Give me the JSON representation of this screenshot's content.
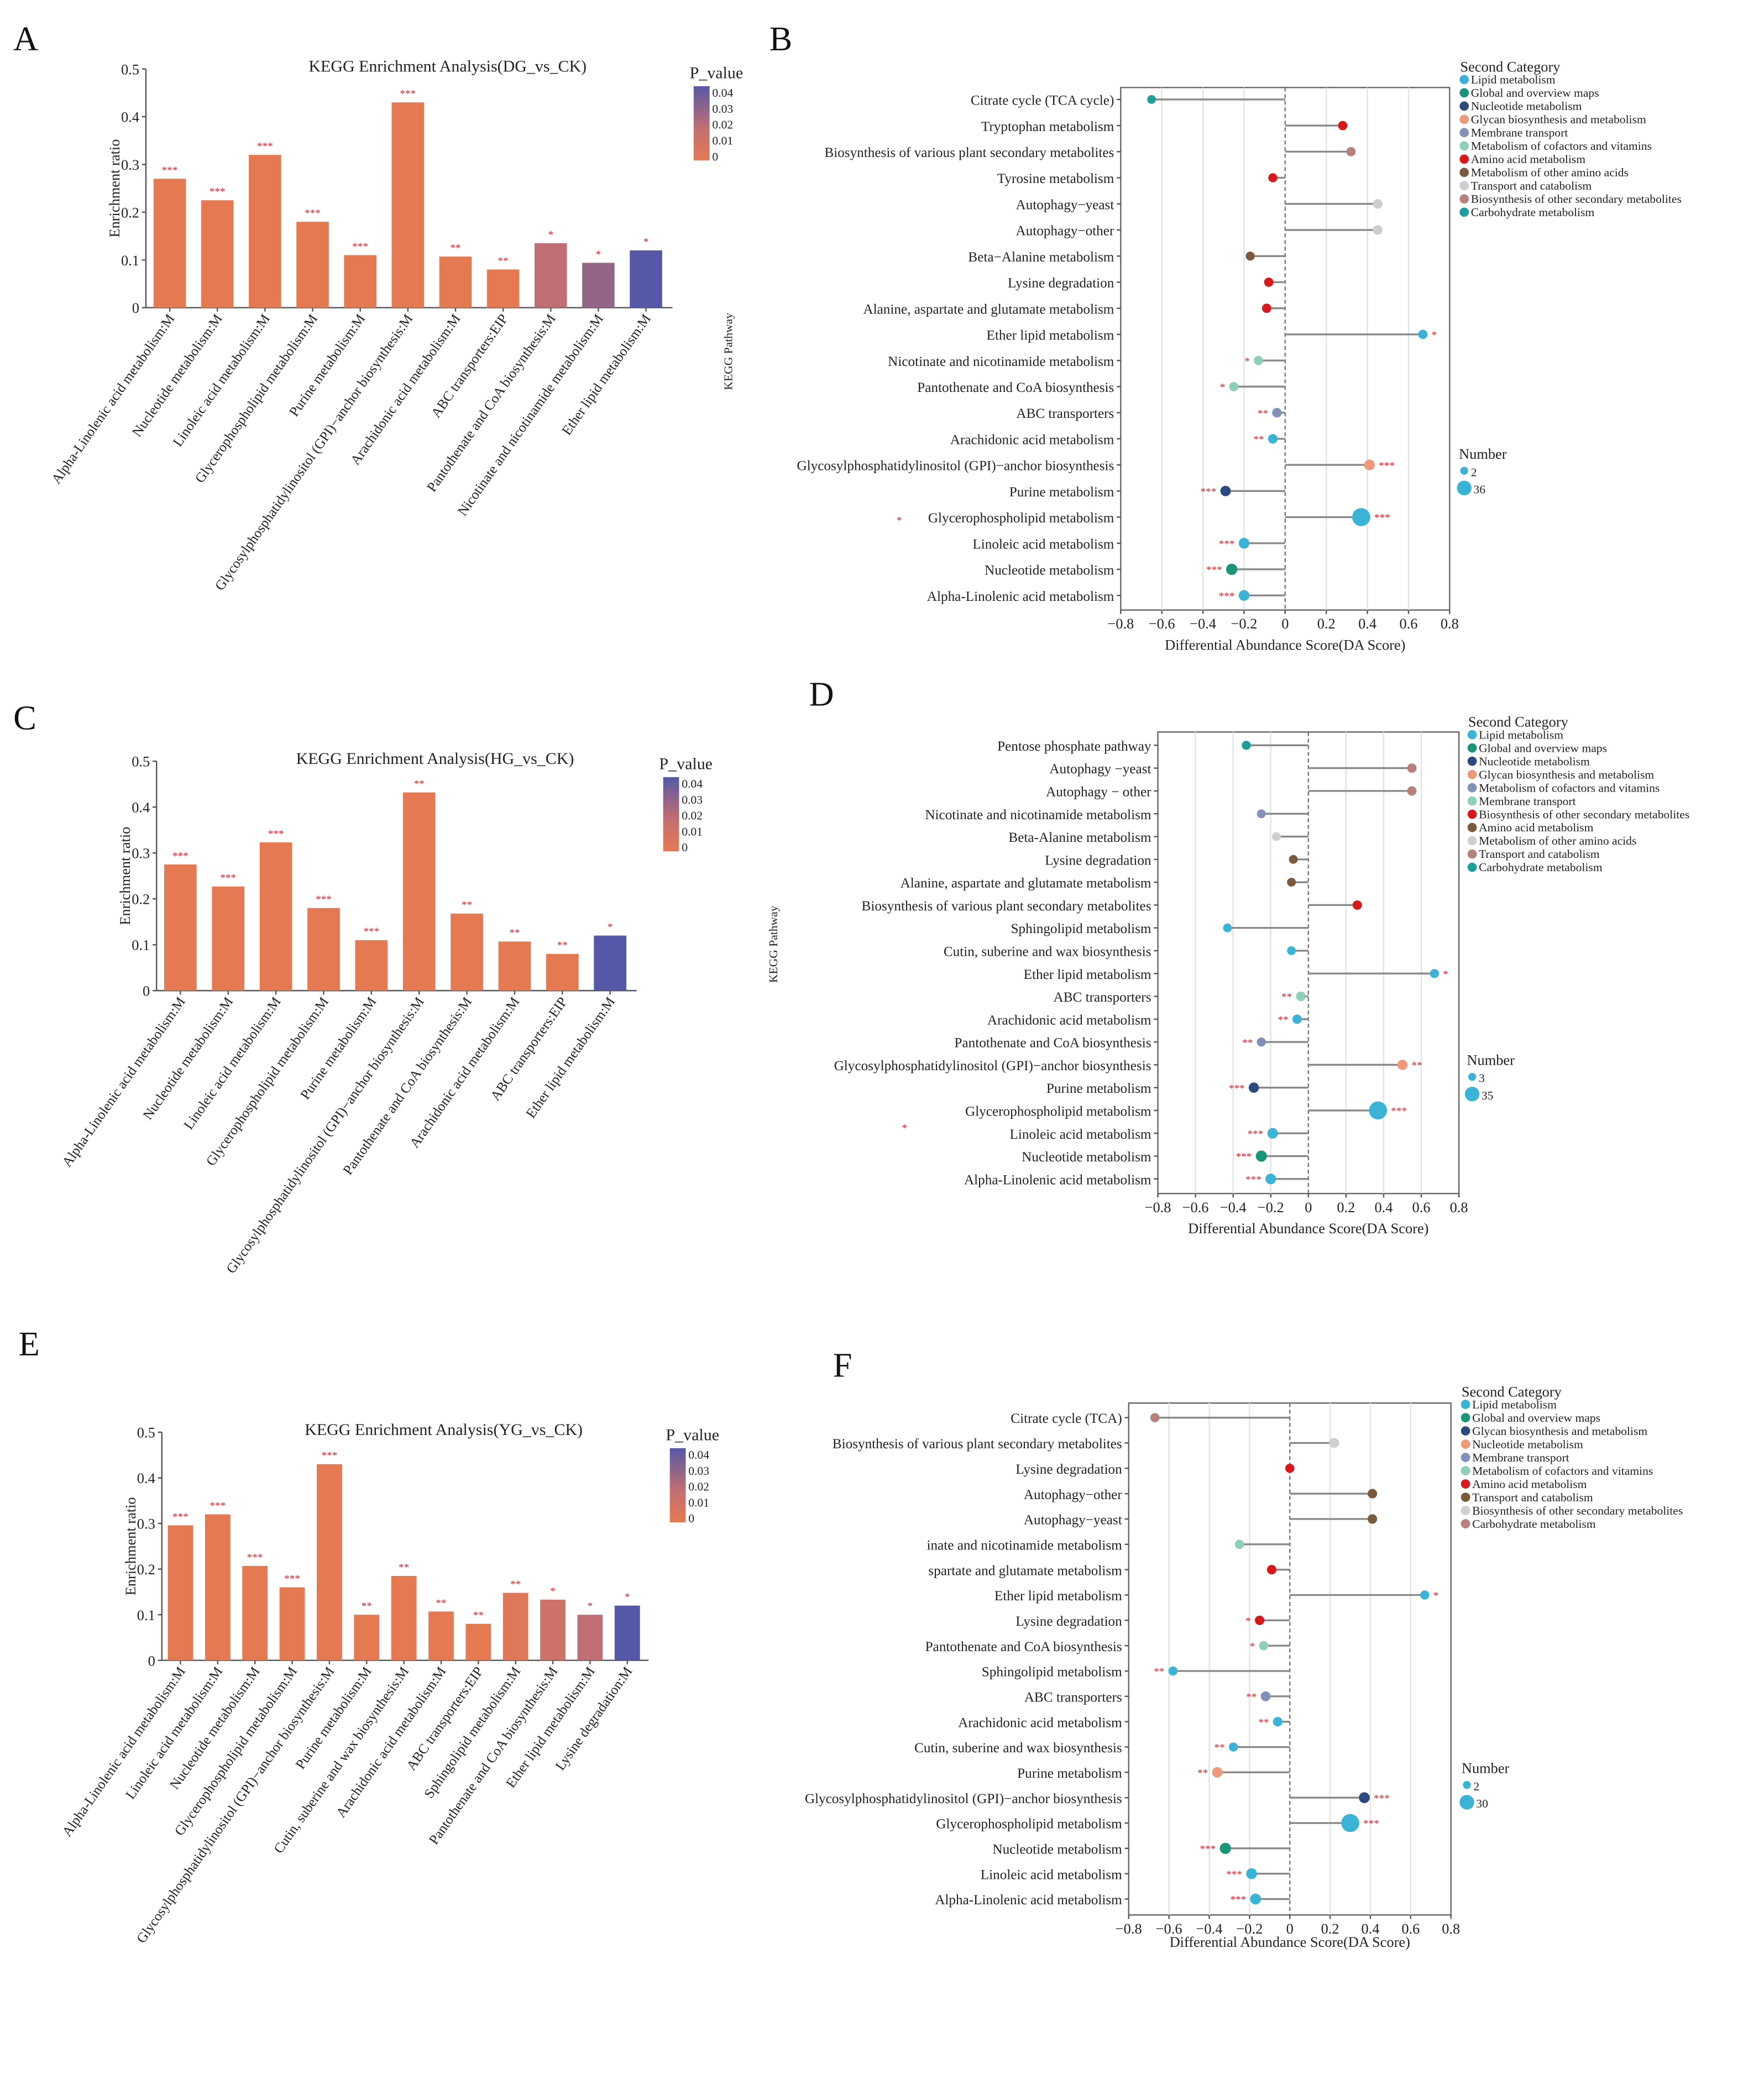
{
  "chart_data": [
    {
      "panel": "A",
      "type": "bar",
      "title": "KEGG Enrichment Analysis(DG_vs_CK)",
      "ylabel": "Enrichment ratio",
      "ylim": [
        0,
        0.5
      ],
      "yticks": [
        "0",
        "0.1",
        "0.2",
        "0.3",
        "0.4",
        "0.5"
      ],
      "legend_title": "P_value",
      "legend_ticks": [
        "0.04",
        "0.03",
        "0.02",
        "0.01",
        "0"
      ],
      "colors": {
        "low": "#E57A52",
        "mid": "#C06E73",
        "high": "#5558A6"
      },
      "categories": [
        "Alpha-Linolenic acid metabolism:M",
        "Nucleotide metabolism:M",
        "Linoleic acid metabolism:M",
        "Glycerophospholipid metabolism:M",
        "Purine metabolism:M",
        "Glycosylphosphatidylinositol (GPI)−anchor biosynthesis:M",
        "Arachidonic acid metabolism:M",
        "ABC transporters:EIP",
        "Pantothenate and CoA biosynthesis:M",
        "Nicotinate and nicotinamide metabolism:M",
        "Ether lipid metabolism:M"
      ],
      "values": [
        0.27,
        0.225,
        0.32,
        0.18,
        0.11,
        0.43,
        0.107,
        0.08,
        0.135,
        0.094,
        0.12
      ],
      "p_values": [
        0.001,
        0.001,
        0.001,
        0.001,
        0.001,
        0.001,
        0.004,
        0.004,
        0.02,
        0.03,
        0.045
      ],
      "significance": [
        "***",
        "***",
        "***",
        "***",
        "***",
        "***",
        "**",
        "**",
        "*",
        "*",
        "*"
      ]
    },
    {
      "panel": "B",
      "type": "lollipop",
      "xlabel": "Differential Abundance Score(DA Score)",
      "ylabel": "KEGG Pathway",
      "xlim": [
        -0.8,
        0.8
      ],
      "xticks": [
        "−0.8",
        "−0.6",
        "−0.4",
        "−0.2",
        "0",
        "0.2",
        "0.4",
        "0.6",
        "0.8"
      ],
      "legend_title": "Second Category",
      "legend": [
        {
          "label": "Lipid metabolism",
          "color": "#3BB3D6"
        },
        {
          "label": "Global and overview maps",
          "color": "#1A9577"
        },
        {
          "label": "Nucleotide metabolism",
          "color": "#2C4A7E"
        },
        {
          "label": "Glycan biosynthesis and metabolism",
          "color": "#EE9A7A"
        },
        {
          "label": "Membrane transport",
          "color": "#8291B8"
        },
        {
          "label": "Metabolism of cofactors and vitamins",
          "color": "#8ECFB8"
        },
        {
          "label": "Amino acid metabolism",
          "color": "#D7191C"
        },
        {
          "label": "Metabolism of other amino acids",
          "color": "#7A5A3C"
        },
        {
          "label": "Transport and catabolism",
          "color": "#CFCFCF"
        },
        {
          "label": "Biosynthesis of other secondary metabolites",
          "color": "#B8807D"
        },
        {
          "label": "Carbohydrate metabolism",
          "color": "#1F9E9E"
        }
      ],
      "size_title": "Number",
      "size_labels": [
        "2",
        "36"
      ],
      "size_range": [
        2,
        36
      ],
      "stray_mark": "*",
      "rows": [
        {
          "label": "Citrate cycle (TCA cycle)",
          "value": -0.65,
          "cat": 10,
          "number": 3,
          "sig": ""
        },
        {
          "label": "Tryptophan metabolism",
          "value": 0.28,
          "cat": 6,
          "number": 5,
          "sig": ""
        },
        {
          "label": "Biosynthesis of various plant secondary metabolites",
          "value": 0.32,
          "cat": 9,
          "number": 5,
          "sig": ""
        },
        {
          "label": "Tyrosine metabolism",
          "value": -0.06,
          "cat": 6,
          "number": 4,
          "sig": ""
        },
        {
          "label": "Autophagy−yeast",
          "value": 0.45,
          "cat": 8,
          "number": 6,
          "sig": ""
        },
        {
          "label": "Autophagy−other",
          "value": 0.45,
          "cat": 8,
          "number": 6,
          "sig": ""
        },
        {
          "label": "Beta−Alanine metabolism",
          "value": -0.17,
          "cat": 7,
          "number": 4,
          "sig": ""
        },
        {
          "label": "Lysine degradation",
          "value": -0.08,
          "cat": 6,
          "number": 5,
          "sig": ""
        },
        {
          "label": "Alanine, aspartate and glutamate metabolism",
          "value": -0.09,
          "cat": 6,
          "number": 5,
          "sig": ""
        },
        {
          "label": "Ether lipid metabolism",
          "value": 0.67,
          "cat": 0,
          "number": 5,
          "sig": "*"
        },
        {
          "label": "Nicotinate and nicotinamide metabolism",
          "value": -0.13,
          "cat": 5,
          "number": 5,
          "sig": "*"
        },
        {
          "label": "Pantothenate and CoA biosynthesis",
          "value": -0.25,
          "cat": 5,
          "number": 5,
          "sig": "*"
        },
        {
          "label": "ABC transporters",
          "value": -0.04,
          "cat": 4,
          "number": 6,
          "sig": "**"
        },
        {
          "label": "Arachidonic acid metabolism",
          "value": -0.06,
          "cat": 0,
          "number": 6,
          "sig": "**"
        },
        {
          "label": "Glycosylphosphatidylinositol (GPI)−anchor biosynthesis",
          "value": 0.41,
          "cat": 3,
          "number": 10,
          "sig": "***"
        },
        {
          "label": "Purine metabolism",
          "value": -0.29,
          "cat": 2,
          "number": 9,
          "sig": "***"
        },
        {
          "label": "Glycerophospholipid metabolism",
          "value": 0.37,
          "cat": 0,
          "number": 36,
          "sig": "***"
        },
        {
          "label": "Linoleic acid metabolism",
          "value": -0.2,
          "cat": 0,
          "number": 10,
          "sig": "***"
        },
        {
          "label": "Nucleotide metabolism",
          "value": -0.26,
          "cat": 1,
          "number": 12,
          "sig": "***"
        },
        {
          "label": "Alpha-Linolenic acid metabolism",
          "value": -0.2,
          "cat": 0,
          "number": 10,
          "sig": "***"
        }
      ]
    },
    {
      "panel": "C",
      "type": "bar",
      "title": "KEGG Enrichment Analysis(HG_vs_CK)",
      "ylabel": "Enrichment ratio",
      "ylim": [
        0,
        0.5
      ],
      "yticks": [
        "0",
        "0.1",
        "0.2",
        "0.3",
        "0.4",
        "0.5"
      ],
      "legend_title": "P_value",
      "legend_ticks": [
        "0.04",
        "0.03",
        "0.02",
        "0.01",
        "0"
      ],
      "colors": {
        "low": "#E57A52",
        "mid": "#C06E73",
        "high": "#5558A6"
      },
      "categories": [
        "Alpha-Linolenic acid metabolism:M",
        "Nucleotide metabolism:M",
        "Linoleic acid metabolism:M",
        "Glycerophospholipid metabolism:M",
        "Purine metabolism:M",
        "Glycosylphosphatidylinositol (GPI)−anchor biosynthesis:M",
        "Pantothenate and CoA biosynthesis:M",
        "Arachidonic acid metabolism:M",
        "ABC transporters:EIP",
        "Ether lipid metabolism:M"
      ],
      "values": [
        0.275,
        0.227,
        0.323,
        0.18,
        0.11,
        0.432,
        0.168,
        0.107,
        0.08,
        0.12
      ],
      "p_values": [
        0.001,
        0.001,
        0.001,
        0.001,
        0.001,
        0.003,
        0.004,
        0.004,
        0.005,
        0.045
      ],
      "significance": [
        "***",
        "***",
        "***",
        "***",
        "***",
        "**",
        "**",
        "**",
        "**",
        "*"
      ]
    },
    {
      "panel": "D",
      "type": "lollipop",
      "xlabel": "Differential Abundance Score(DA Score)",
      "ylabel": "KEGG Pathway",
      "xlim": [
        -0.8,
        0.8
      ],
      "xticks": [
        "−0.8",
        "−0.6",
        "−0.4",
        "−0.2",
        "0",
        "0.2",
        "0.4",
        "0.6",
        "0.8"
      ],
      "legend_title": "Second Category",
      "legend": [
        {
          "label": "Lipid metabolism",
          "color": "#3BB3D6"
        },
        {
          "label": "Global and overview maps",
          "color": "#1A9577"
        },
        {
          "label": "Nucleotide metabolism",
          "color": "#2C4A7E"
        },
        {
          "label": "Glycan biosynthesis and metabolism",
          "color": "#EE9A7A"
        },
        {
          "label": "Metabolism of cofactors and vitamins",
          "color": "#8291B8"
        },
        {
          "label": "Membrane transport",
          "color": "#8ECFB8"
        },
        {
          "label": "Biosynthesis of other secondary metabolites",
          "color": "#D7191C"
        },
        {
          "label": "Amino acid metabolism",
          "color": "#7A5A3C"
        },
        {
          "label": "Metabolism of other amino acids",
          "color": "#CFCFCF"
        },
        {
          "label": "Transport and catabolism",
          "color": "#B8807D"
        },
        {
          "label": "Carbohydrate metabolism",
          "color": "#1F9E9E"
        }
      ],
      "size_title": "Number",
      "size_labels": [
        "3",
        "35"
      ],
      "size_range": [
        3,
        35
      ],
      "stray_mark": "*",
      "rows": [
        {
          "label": "Pentose phosphate pathway",
          "value": -0.33,
          "cat": 10,
          "number": 5,
          "sig": ""
        },
        {
          "label": "Autophagy −yeast",
          "value": 0.55,
          "cat": 9,
          "number": 6,
          "sig": ""
        },
        {
          "label": "Autophagy − other",
          "value": 0.55,
          "cat": 9,
          "number": 6,
          "sig": ""
        },
        {
          "label": "Nicotinate and nicotinamide metabolism",
          "value": -0.25,
          "cat": 4,
          "number": 4,
          "sig": ""
        },
        {
          "label": "Beta-Alanine metabolism",
          "value": -0.17,
          "cat": 8,
          "number": 4,
          "sig": ""
        },
        {
          "label": "Lysine degradation",
          "value": -0.08,
          "cat": 7,
          "number": 4,
          "sig": ""
        },
        {
          "label": "Alanine, aspartate and glutamate metabolism",
          "value": -0.09,
          "cat": 7,
          "number": 4,
          "sig": ""
        },
        {
          "label": "Biosynthesis of various plant secondary metabolites",
          "value": 0.26,
          "cat": 6,
          "number": 6,
          "sig": ""
        },
        {
          "label": "Sphingolipid metabolism",
          "value": -0.43,
          "cat": 0,
          "number": 4,
          "sig": ""
        },
        {
          "label": "Cutin, suberine and wax biosynthesis",
          "value": -0.09,
          "cat": 0,
          "number": 4,
          "sig": ""
        },
        {
          "label": "Ether lipid metabolism",
          "value": 0.67,
          "cat": 0,
          "number": 5,
          "sig": "*"
        },
        {
          "label": "ABC transporters",
          "value": -0.04,
          "cat": 5,
          "number": 7,
          "sig": "**"
        },
        {
          "label": "Arachidonic acid metabolism",
          "value": -0.06,
          "cat": 0,
          "number": 6,
          "sig": "**"
        },
        {
          "label": "Pantothenate and CoA biosynthesis",
          "value": -0.25,
          "cat": 4,
          "number": 5,
          "sig": "**"
        },
        {
          "label": "Glycosylphosphatidylinositol (GPI)−anchor biosynthesis",
          "value": 0.5,
          "cat": 3,
          "number": 9,
          "sig": "**"
        },
        {
          "label": "Purine metabolism",
          "value": -0.29,
          "cat": 2,
          "number": 9,
          "sig": "***"
        },
        {
          "label": "Glycerophospholipid metabolism",
          "value": 0.37,
          "cat": 0,
          "number": 35,
          "sig": "***"
        },
        {
          "label": "Linoleic acid metabolism",
          "value": -0.19,
          "cat": 0,
          "number": 10,
          "sig": "***"
        },
        {
          "label": "Nucleotide metabolism",
          "value": -0.25,
          "cat": 1,
          "number": 12,
          "sig": "***"
        },
        {
          "label": "Alpha-Linolenic acid metabolism",
          "value": -0.2,
          "cat": 0,
          "number": 10,
          "sig": "***"
        }
      ]
    },
    {
      "panel": "E",
      "type": "bar",
      "title": "KEGG Enrichment Analysis(YG_vs_CK)",
      "ylabel": "Enrichment ratio",
      "ylim": [
        0,
        0.5
      ],
      "yticks": [
        "0",
        "0.1",
        "0.2",
        "0.3",
        "0.4",
        "0.5"
      ],
      "legend_title": "P_value",
      "legend_ticks": [
        "0.04",
        "0.03",
        "0.02",
        "0.01",
        "0"
      ],
      "colors": {
        "low": "#E57A52",
        "mid": "#C06E73",
        "high": "#5558A6"
      },
      "categories": [
        "Alpha-Linolenic acid metabolism:M",
        "Linoleic acid metabolism:M",
        "Nucleotide metabolism:M",
        "Glycerophospholipid metabolism:M",
        "Glycosylphosphatidylinositol (GPI)−anchor biosynthesis:M",
        "Purine metabolism:M",
        "Cutin, suberine and wax biosynthesis:M",
        "Arachidonic acid metabolism:M",
        "ABC transporters:EIP",
        "Sphingolipid metabolism:M",
        "Pantothenate and CoA biosynthesis:M",
        "Ether lipid metabolism:M",
        "Lysine degradation:M"
      ],
      "values": [
        0.296,
        0.32,
        0.207,
        0.16,
        0.43,
        0.1,
        0.185,
        0.107,
        0.08,
        0.148,
        0.133,
        0.1,
        0.12
      ],
      "p_values": [
        0.001,
        0.001,
        0.001,
        0.001,
        0.001,
        0.003,
        0.003,
        0.004,
        0.004,
        0.008,
        0.015,
        0.02,
        0.045
      ],
      "significance": [
        "***",
        "***",
        "***",
        "***",
        "***",
        "**",
        "**",
        "**",
        "**",
        "**",
        "*",
        "*",
        "*"
      ]
    },
    {
      "panel": "F",
      "type": "lollipop",
      "xlabel": "Differential Abundance Score(DA Score)",
      "ylabel": "",
      "xlim": [
        -0.8,
        0.8
      ],
      "xticks": [
        "−0.8",
        "−0.6",
        "−0.4",
        "−0.2",
        "0",
        "0.2",
        "0.4",
        "0.6",
        "0.8"
      ],
      "legend_title": "Second Category",
      "legend": [
        {
          "label": "Lipid metabolism",
          "color": "#3BB3D6"
        },
        {
          "label": "Global and overview maps",
          "color": "#1A9577"
        },
        {
          "label": "Glycan biosynthesis and metabolism",
          "color": "#2C4A7E"
        },
        {
          "label": "Nucleotide metabolism",
          "color": "#EE9A7A"
        },
        {
          "label": "Membrane transport",
          "color": "#8291B8"
        },
        {
          "label": "Metabolism of cofactors and vitamins",
          "color": "#8ECFB8"
        },
        {
          "label": "Amino acid metabolism",
          "color": "#D7191C"
        },
        {
          "label": "Transport and catabolism",
          "color": "#7A5A3C"
        },
        {
          "label": "Biosynthesis of other secondary metabolites",
          "color": "#CFCFCF"
        },
        {
          "label": "Carbohydrate metabolism",
          "color": "#B8807D"
        }
      ],
      "size_title": "Number",
      "size_labels": [
        "2",
        "30"
      ],
      "size_range": [
        2,
        30
      ],
      "rows": [
        {
          "label": "Citrate cycle (TCA)",
          "value": -0.67,
          "cat": 9,
          "number": 4,
          "sig": ""
        },
        {
          "label": "Biosynthesis of various plant secondary metabolites",
          "value": 0.22,
          "cat": 8,
          "number": 6,
          "sig": ""
        },
        {
          "label": "Lysine degradation",
          "value": 0.0,
          "cat": 6,
          "number": 4,
          "sig": ""
        },
        {
          "label": "Autophagy−other",
          "value": 0.41,
          "cat": 7,
          "number": 5,
          "sig": ""
        },
        {
          "label": "Autophagy−yeast",
          "value": 0.41,
          "cat": 7,
          "number": 5,
          "sig": ""
        },
        {
          "label": "inate and nicotinamide metabolism",
          "value": -0.25,
          "cat": 5,
          "number": 4,
          "sig": ""
        },
        {
          "label": "spartate and glutamate metabolism",
          "value": -0.09,
          "cat": 6,
          "number": 5,
          "sig": ""
        },
        {
          "label": "Ether lipid metabolism",
          "value": 0.67,
          "cat": 0,
          "number": 4,
          "sig": "*"
        },
        {
          "label": "Lysine degradation",
          "value": -0.15,
          "cat": 6,
          "number": 5,
          "sig": "*"
        },
        {
          "label": "Pantothenate and CoA biosynthesis",
          "value": -0.13,
          "cat": 5,
          "number": 4,
          "sig": "*"
        },
        {
          "label": "Sphingolipid metabolism",
          "value": -0.58,
          "cat": 0,
          "number": 4,
          "sig": "**"
        },
        {
          "label": "ABC transporters",
          "value": -0.12,
          "cat": 4,
          "number": 6,
          "sig": "**"
        },
        {
          "label": "Arachidonic acid metabolism",
          "value": -0.06,
          "cat": 0,
          "number": 5,
          "sig": "**"
        },
        {
          "label": "Cutin, suberine and wax biosynthesis",
          "value": -0.28,
          "cat": 0,
          "number": 4,
          "sig": "**"
        },
        {
          "label": "Purine metabolism",
          "value": -0.36,
          "cat": 3,
          "number": 8,
          "sig": "**"
        },
        {
          "label": "Glycosylphosphatidylinositol (GPI)−anchor biosynthesis",
          "value": 0.37,
          "cat": 2,
          "number": 9,
          "sig": "***"
        },
        {
          "label": "Glycerophospholipid metabolism",
          "value": 0.3,
          "cat": 0,
          "number": 30,
          "sig": "***"
        },
        {
          "label": "Nucleotide metabolism",
          "value": -0.32,
          "cat": 1,
          "number": 10,
          "sig": "***"
        },
        {
          "label": "Linoleic acid metabolism",
          "value": -0.19,
          "cat": 0,
          "number": 9,
          "sig": "***"
        },
        {
          "label": "Alpha-Linolenic acid metabolism",
          "value": -0.17,
          "cat": 0,
          "number": 9,
          "sig": "***"
        }
      ]
    }
  ]
}
